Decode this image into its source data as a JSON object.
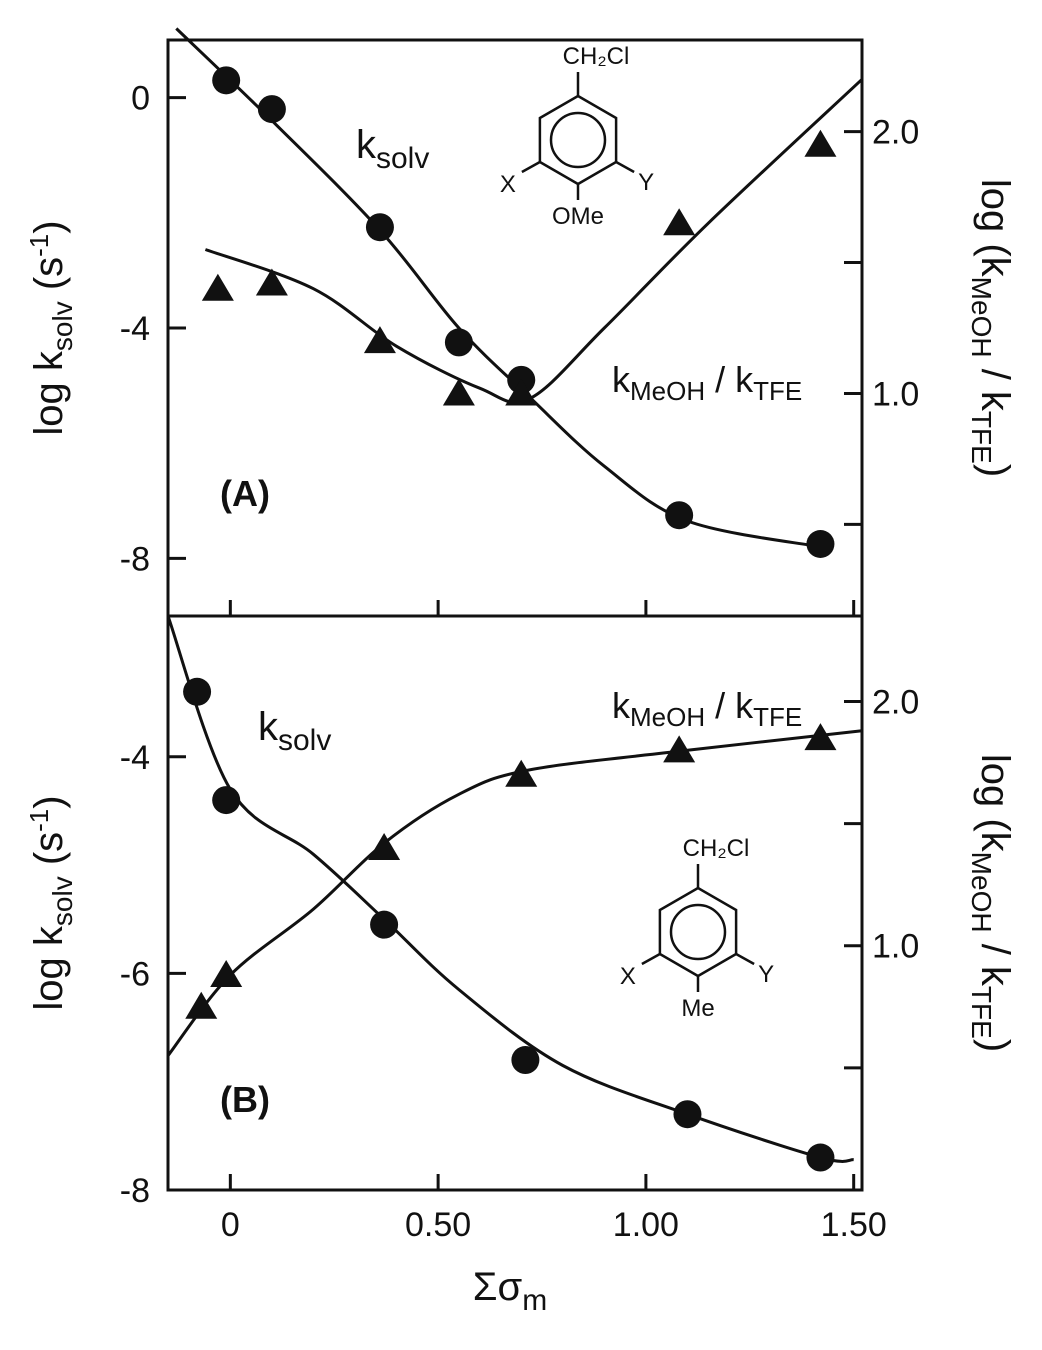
{
  "chart_data": [
    {
      "type": "scatter",
      "panel_label": "(A)",
      "ylabel_left": "log k",
      "ylabel_left_sub": "solv",
      "ylabel_left_unit": "(s",
      "ylabel_left_unit_sup": "-1",
      "ylabel_left_unit_end": ")",
      "ylabel_right": "log (k",
      "ylabel_right_sub1": "MeOH",
      "ylabel_right_mid": "/ k",
      "ylabel_right_sub2": "TFE",
      "ylabel_right_end": ")",
      "ylim_left": [
        -9.0,
        1.0
      ],
      "ylim_right": [
        0.15,
        2.35
      ],
      "yticks_left": [
        0,
        -4,
        -8
      ],
      "yticks_right_labeled": [
        "2.0",
        "1.0"
      ],
      "yticks_right": [
        2.0,
        1.5,
        1.0,
        0.5
      ],
      "xlim": [
        -0.15,
        1.52
      ],
      "structure": {
        "top": "CH₂Cl",
        "left": "X",
        "right": "Y",
        "bottom": "OMe"
      },
      "series": [
        {
          "name": "k",
          "name_sub": "solv",
          "marker": "circle",
          "axis": "left",
          "x": [
            -0.01,
            0.1,
            0.36,
            0.55,
            0.7,
            1.08,
            1.42
          ],
          "y": [
            0.3,
            -0.2,
            -2.25,
            -4.25,
            -4.9,
            -7.25,
            -7.75
          ]
        },
        {
          "name": "k",
          "name_sub": "MeOH",
          "name_mid": "/ k",
          "name_sub2": "TFE",
          "marker": "triangle",
          "axis": "right",
          "x": [
            -0.03,
            0.1,
            0.36,
            0.55,
            0.7,
            1.08,
            1.42
          ],
          "y": [
            1.4,
            1.42,
            1.2,
            1.0,
            1.0,
            1.65,
            1.95
          ]
        }
      ]
    },
    {
      "type": "scatter",
      "panel_label": "(B)",
      "xlabel": "Σσ",
      "xlabel_sub": "m",
      "xticks": [
        0,
        0.5,
        1.0,
        1.5
      ],
      "xtick_labels": [
        "0",
        "0.50",
        "1.00",
        "1.50"
      ],
      "ylabel_left": "log k",
      "ylabel_left_sub": "solv",
      "ylabel_left_unit": "(s",
      "ylabel_left_unit_sup": "-1",
      "ylabel_left_unit_end": ")",
      "ylabel_right": "log (k",
      "ylabel_right_sub1": "MeOH",
      "ylabel_right_mid": "/ k",
      "ylabel_right_sub2": "TFE",
      "ylabel_right_end": ")",
      "ylim_left": [
        -8.0,
        -2.7
      ],
      "ylim_right": [
        0.0,
        2.35
      ],
      "yticks_left": [
        -4,
        -6,
        -8
      ],
      "yticks_right_labeled": [
        "2.0",
        "1.0"
      ],
      "yticks_right": [
        2.0,
        1.5,
        1.0,
        0.5
      ],
      "xlim": [
        -0.15,
        1.52
      ],
      "structure": {
        "top": "CH₂Cl",
        "left": "X",
        "right": "Y",
        "bottom": "Me"
      },
      "series": [
        {
          "name": "k",
          "name_sub": "solv",
          "marker": "circle",
          "axis": "left",
          "x": [
            -0.08,
            -0.01,
            0.37,
            0.71,
            1.1,
            1.42
          ],
          "y": [
            -3.4,
            -4.4,
            -5.55,
            -6.8,
            -7.3,
            -7.7
          ]
        },
        {
          "name": "k",
          "name_sub": "MeOH",
          "name_mid": "/ k",
          "name_sub2": "TFE",
          "marker": "triangle",
          "axis": "right",
          "x": [
            -0.07,
            -0.01,
            0.37,
            0.7,
            1.08,
            1.42
          ],
          "y": [
            0.75,
            0.88,
            1.4,
            1.7,
            1.8,
            1.85
          ]
        }
      ]
    }
  ]
}
